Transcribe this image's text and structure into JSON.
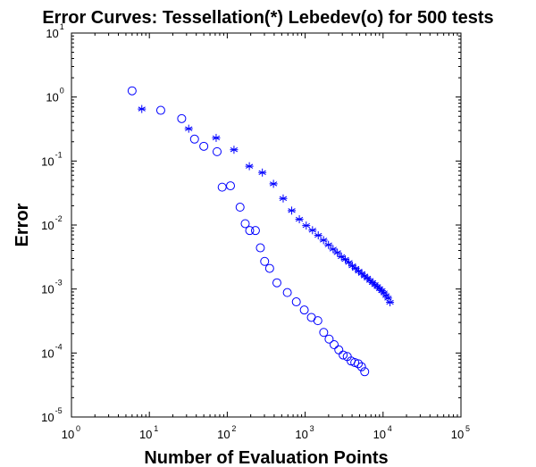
{
  "chart_data": {
    "type": "scatter",
    "title": "Error Curves: Tessellation(*) Lebedev(o) for 500 tests",
    "xlabel": "Number of Evaluation Points",
    "ylabel": "Error",
    "xscale": "log",
    "yscale": "log",
    "xlim": [
      1,
      100000
    ],
    "ylim": [
      1e-05,
      10
    ],
    "x_ticks": [
      {
        "base": "10",
        "exp": "0",
        "value": 1
      },
      {
        "base": "10",
        "exp": "1",
        "value": 10
      },
      {
        "base": "10",
        "exp": "2",
        "value": 100
      },
      {
        "base": "10",
        "exp": "3",
        "value": 1000
      },
      {
        "base": "10",
        "exp": "4",
        "value": 10000
      },
      {
        "base": "10",
        "exp": "5",
        "value": 100000
      }
    ],
    "y_ticks": [
      {
        "base": "10",
        "exp": "1",
        "value": 10
      },
      {
        "base": "10",
        "exp": "0",
        "value": 1
      },
      {
        "base": "10",
        "exp": "-1",
        "value": 0.1
      },
      {
        "base": "10",
        "exp": "-2",
        "value": 0.01
      },
      {
        "base": "10",
        "exp": "-3",
        "value": 0.001
      },
      {
        "base": "10",
        "exp": "-4",
        "value": 0.0001
      },
      {
        "base": "10",
        "exp": "-5",
        "value": 1e-05
      }
    ],
    "grid": false,
    "series": [
      {
        "name": "Tessellation",
        "marker": "*",
        "color": "#0000ff",
        "x": [
          8,
          32,
          72,
          122,
          192,
          282,
          392,
          522,
          672,
          842,
          1032,
          1242,
          1472,
          1722,
          1992,
          2282,
          2592,
          2922,
          3272,
          3642,
          4032,
          4442,
          4872,
          5322,
          5792,
          6282,
          6792,
          7322,
          7872,
          8442,
          9032,
          9642,
          10272,
          10922,
          11592,
          12282
        ],
        "y": [
          0.65,
          0.32,
          0.23,
          0.15,
          0.083,
          0.066,
          0.044,
          0.026,
          0.0168,
          0.0123,
          0.0098,
          0.0083,
          0.0069,
          0.0058,
          0.0049,
          0.0042,
          0.0037,
          0.0032,
          0.0029,
          0.0026,
          0.0023,
          0.0021,
          0.0019,
          0.00175,
          0.0016,
          0.00148,
          0.00136,
          0.00126,
          0.00117,
          0.00109,
          0.00101,
          0.00094,
          0.00087,
          0.00079,
          0.00072,
          0.00062
        ]
      },
      {
        "name": "Lebedev",
        "marker": "o",
        "color": "#0000ff",
        "x": [
          6,
          14,
          26,
          38,
          50,
          74,
          86,
          110,
          146,
          170,
          194,
          230,
          266,
          302,
          350,
          434,
          590,
          770,
          974,
          1202,
          1454,
          1730,
          2030,
          2354,
          2702,
          3074,
          3470,
          3890,
          4334,
          4802,
          5294,
          5810
        ],
        "y": [
          1.25,
          0.62,
          0.46,
          0.22,
          0.17,
          0.14,
          0.039,
          0.041,
          0.019,
          0.0105,
          0.0082,
          0.0082,
          0.0044,
          0.0027,
          0.0021,
          0.00125,
          0.00088,
          0.00063,
          0.00047,
          0.00036,
          0.00032,
          0.00021,
          0.000165,
          0.000135,
          0.000112,
          9.3e-05,
          8.8e-05,
          7.5e-05,
          7.1e-05,
          6.8e-05,
          6.1e-05,
          5.1e-05
        ]
      }
    ]
  }
}
